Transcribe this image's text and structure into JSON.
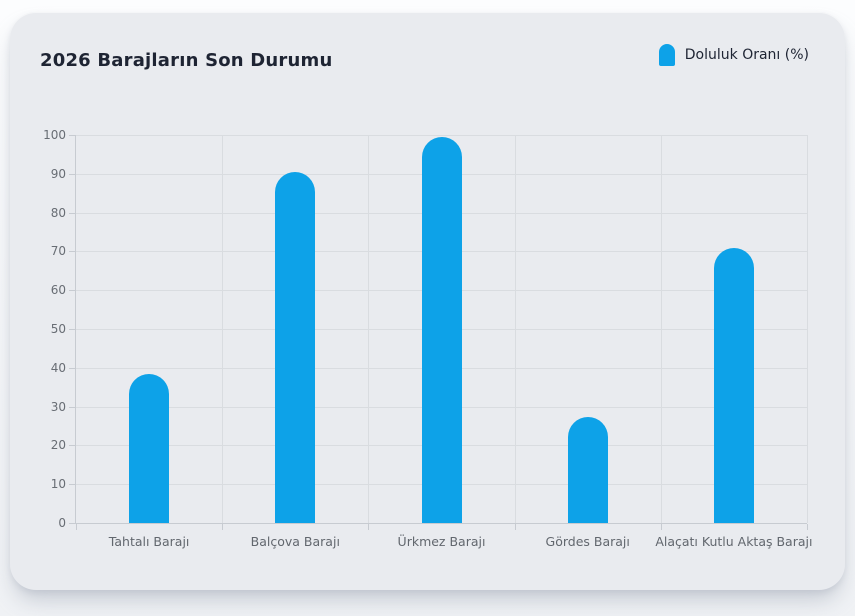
{
  "card": {
    "background": "#e9ebef"
  },
  "legend": {
    "position": "top-right"
  },
  "chart_data": {
    "type": "bar",
    "title": "2026 Barajların Son Durumu",
    "series_name": "Doluluk Oranı (%)",
    "categories": [
      "Tahtalı Barajı",
      "Balçova Barajı",
      "Ürkmez Barajı",
      "Gördes Barajı",
      "Alaçatı Kutlu Aktaş Barajı"
    ],
    "values": [
      38.5,
      90.5,
      99.4,
      27.4,
      71
    ],
    "xlabel": "",
    "ylabel": "",
    "ylim": [
      0,
      100
    ],
    "ytick_step": 10,
    "grid": true,
    "legend_position": "top-right",
    "bar_color": "#0da2e8",
    "gridline_color": "#d9dce0",
    "axis_color": "#c7cbd1",
    "title_color": "#1e2433",
    "tick_label_color": "#686d74"
  }
}
